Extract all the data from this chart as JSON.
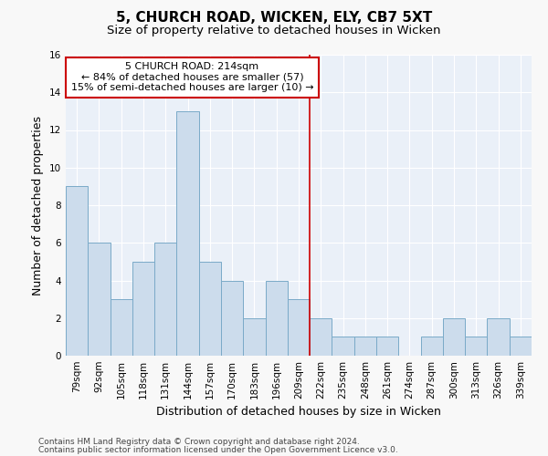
{
  "title1": "5, CHURCH ROAD, WICKEN, ELY, CB7 5XT",
  "title2": "Size of property relative to detached houses in Wicken",
  "xlabel": "Distribution of detached houses by size in Wicken",
  "ylabel": "Number of detached properties",
  "categories": [
    "79sqm",
    "92sqm",
    "105sqm",
    "118sqm",
    "131sqm",
    "144sqm",
    "157sqm",
    "170sqm",
    "183sqm",
    "196sqm",
    "209sqm",
    "222sqm",
    "235sqm",
    "248sqm",
    "261sqm",
    "274sqm",
    "287sqm",
    "300sqm",
    "313sqm",
    "326sqm",
    "339sqm"
  ],
  "values": [
    9,
    6,
    3,
    5,
    6,
    13,
    5,
    4,
    2,
    4,
    3,
    2,
    1,
    1,
    1,
    0,
    1,
    2,
    1,
    2,
    1
  ],
  "bar_color": "#ccdcec",
  "bar_edge_color": "#7aaac8",
  "vline_x_index": 10.5,
  "vline_color": "#cc0000",
  "annotation_line1": "5 CHURCH ROAD: 214sqm",
  "annotation_line2": "← 84% of detached houses are smaller (57)",
  "annotation_line3": "15% of semi-detached houses are larger (10) →",
  "annotation_box_color": "#cc0000",
  "ylim": [
    0,
    16
  ],
  "yticks": [
    0,
    2,
    4,
    6,
    8,
    10,
    12,
    14,
    16
  ],
  "footer1": "Contains HM Land Registry data © Crown copyright and database right 2024.",
  "footer2": "Contains public sector information licensed under the Open Government Licence v3.0.",
  "fig_facecolor": "#f8f8f8",
  "ax_facecolor": "#eaf0f8",
  "grid_color": "#ffffff",
  "title1_fontsize": 11,
  "title2_fontsize": 9.5,
  "xlabel_fontsize": 9,
  "ylabel_fontsize": 9,
  "tick_fontsize": 7.5,
  "annotation_fontsize": 8,
  "footer_fontsize": 6.5
}
